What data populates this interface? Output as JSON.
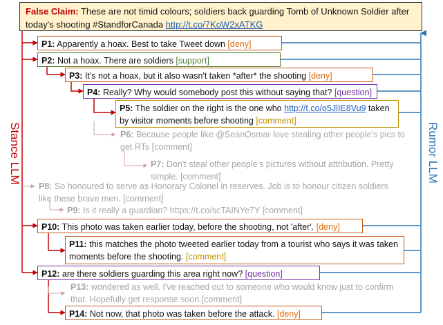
{
  "claim": {
    "label": "False Claim:",
    "text": "These are not timid colours; soldiers back guarding Tomb of Unknown Soldier after today's shooting #StandforCanada",
    "link": "http://t.co/7KoW2xATKG"
  },
  "side_labels": {
    "left": "Stance LLM",
    "right": "Rumor LLM"
  },
  "posts": [
    {
      "id": "P1:",
      "text": "Apparently a hoax. Best to take Tweet down",
      "tag": "[deny]"
    },
    {
      "id": "P2:",
      "text": "Not a hoax.  There are soldiers",
      "tag": "[support]"
    },
    {
      "id": "P3:",
      "text": "It's not a hoax, but it also wasn't taken *after* the shooting",
      "tag": "[deny]"
    },
    {
      "id": "P4:",
      "text": "Really? Why would somebody post this without saying that?",
      "tag": "[question]"
    },
    {
      "id": "P5:",
      "text_a": "The soldier on the right is the one who",
      "link": "http://t.co/o5JlIE8Vu9",
      "text_b": "taken by visitor moments before shooting",
      "tag": "[comment]"
    },
    {
      "id": "P6:",
      "text": "Because people like @SeanOsmar love stealing other people's pics to get RTs [comment]"
    },
    {
      "id": "P7:",
      "text": "Don't steal other people's pictures without attribution. Pretty simple. [comment]"
    },
    {
      "id": "P8:",
      "text": "So honoured to serve as Honorary Colonel in reserves. Job is to honour citizen soldiers like these brave men. [comment]"
    },
    {
      "id": "P9:",
      "text": "Is it really a guardian? https://t.co/scTAINYe7Y [comment]"
    },
    {
      "id": "P10:",
      "text": "This photo was taken earlier today, before the shooting, not 'after'.",
      "tag": "[deny]"
    },
    {
      "id": "P11:",
      "text": "this matches the photo tweeted earlier today from a tourist who says it was taken moments before the shooting.",
      "tag": "[comment]"
    },
    {
      "id": "P12:",
      "text": "are there soldiers guarding this area right now?",
      "tag": "[question]"
    },
    {
      "id": "P13:",
      "text": "wondered as well. I've reached out to someone who would know just to confirm that. Hopefully get response soon.[comment]"
    },
    {
      "id": "P14:",
      "text": "Not now, that photo was taken before the attack.",
      "tag": "[deny]"
    }
  ],
  "colors": {
    "stance": "#c00000",
    "rumor": "#2e75b6",
    "gray": "#bfbfbf"
  }
}
